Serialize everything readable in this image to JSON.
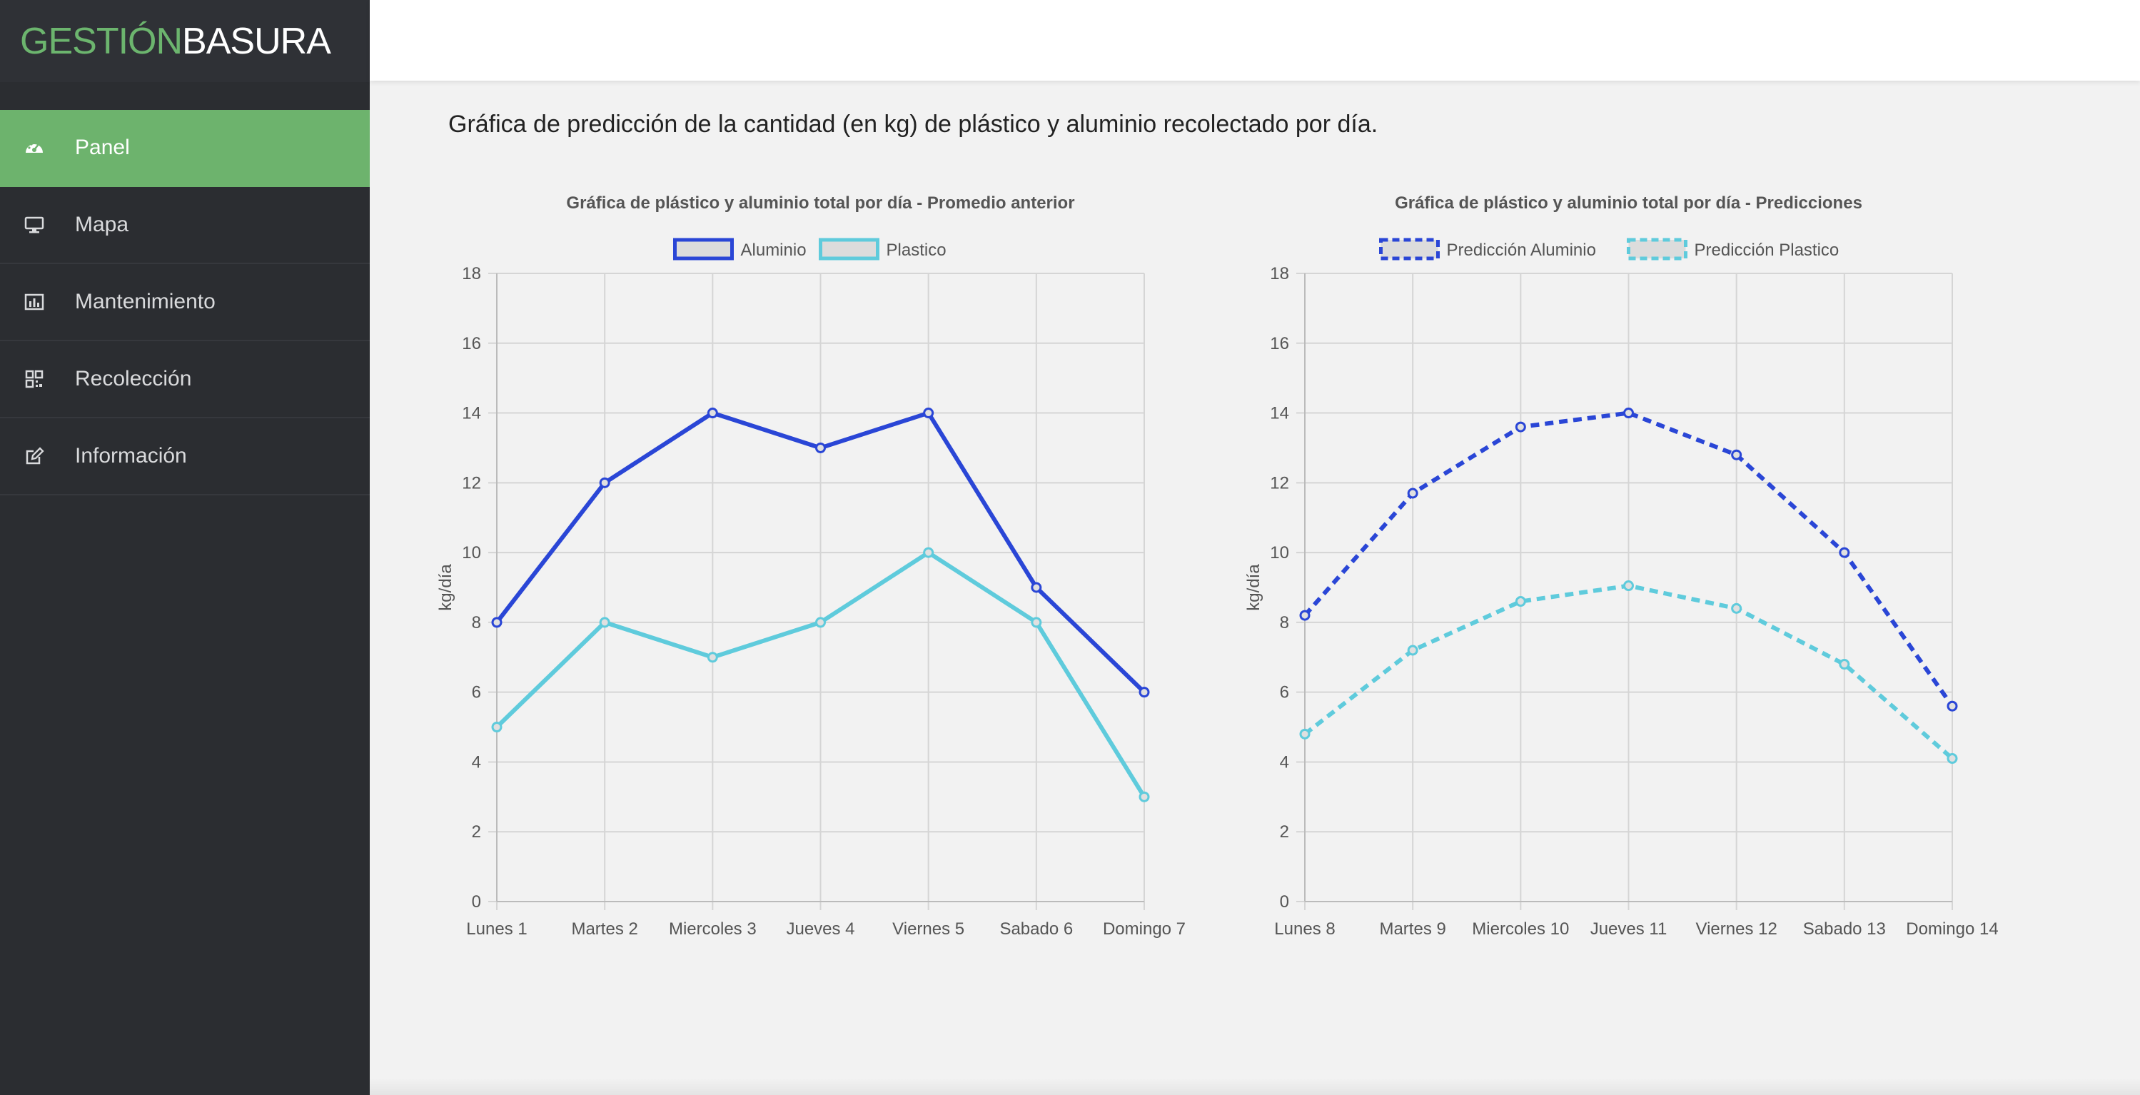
{
  "app": {
    "logo_part1": "GESTIÓN",
    "logo_part2": "BASURA"
  },
  "sidebar": {
    "items": [
      {
        "label": "Panel",
        "icon": "dashboard-icon",
        "active": true
      },
      {
        "label": "Mapa",
        "icon": "monitor-icon",
        "active": false
      },
      {
        "label": "Mantenimiento",
        "icon": "bar-chart-icon",
        "active": false
      },
      {
        "label": "Recolección",
        "icon": "qrcode-icon",
        "active": false
      },
      {
        "label": "Información",
        "icon": "edit-icon",
        "active": false
      }
    ]
  },
  "main": {
    "title": "Gráfica de predicción de la cantidad (en kg) de plástico y aluminio recolectado por día."
  },
  "colors": {
    "accent": "#6db36d",
    "aluminio": "#2a46d6",
    "plastico": "#5fcbdc"
  },
  "chart_data": [
    {
      "type": "line",
      "title": "Gráfica de plástico y aluminio total por día - Promedio anterior",
      "ylabel": "kg/día",
      "ylim": [
        0,
        18
      ],
      "yticks": [
        "0",
        "2",
        "4",
        "6",
        "8",
        "10",
        "12",
        "14",
        "16",
        "18"
      ],
      "categories": [
        "Lunes 1",
        "Martes 2",
        "Miercoles 3",
        "Jueves 4",
        "Viernes 5",
        "Sabado 6",
        "Domingo 7"
      ],
      "legend_position": "top",
      "grid": true,
      "series": [
        {
          "name": "Aluminio",
          "values": [
            8,
            12,
            14,
            13,
            14,
            9,
            6
          ],
          "color": "#2a46d6",
          "dashed": false
        },
        {
          "name": "Plastico",
          "values": [
            5,
            8,
            7,
            8,
            10,
            8,
            3
          ],
          "color": "#5fcbdc",
          "dashed": false
        }
      ]
    },
    {
      "type": "line",
      "title": "Gráfica de plástico y aluminio total por día - Predicciones",
      "ylabel": "kg/día",
      "ylim": [
        0,
        18
      ],
      "yticks": [
        "0",
        "2",
        "4",
        "6",
        "8",
        "10",
        "12",
        "14",
        "16",
        "18"
      ],
      "categories": [
        "Lunes 8",
        "Martes 9",
        "Miercoles 10",
        "Jueves 11",
        "Viernes 12",
        "Sabado 13",
        "Domingo 14"
      ],
      "legend_position": "top",
      "grid": true,
      "series": [
        {
          "name": "Predicción Aluminio",
          "values": [
            8.2,
            11.7,
            13.6,
            14.0,
            12.8,
            10.0,
            5.6
          ],
          "color": "#2a46d6",
          "dashed": true
        },
        {
          "name": "Predicción Plastico",
          "values": [
            4.8,
            7.2,
            8.6,
            9.05,
            8.4,
            6.8,
            4.1
          ],
          "color": "#5fcbdc",
          "dashed": true
        }
      ]
    }
  ]
}
